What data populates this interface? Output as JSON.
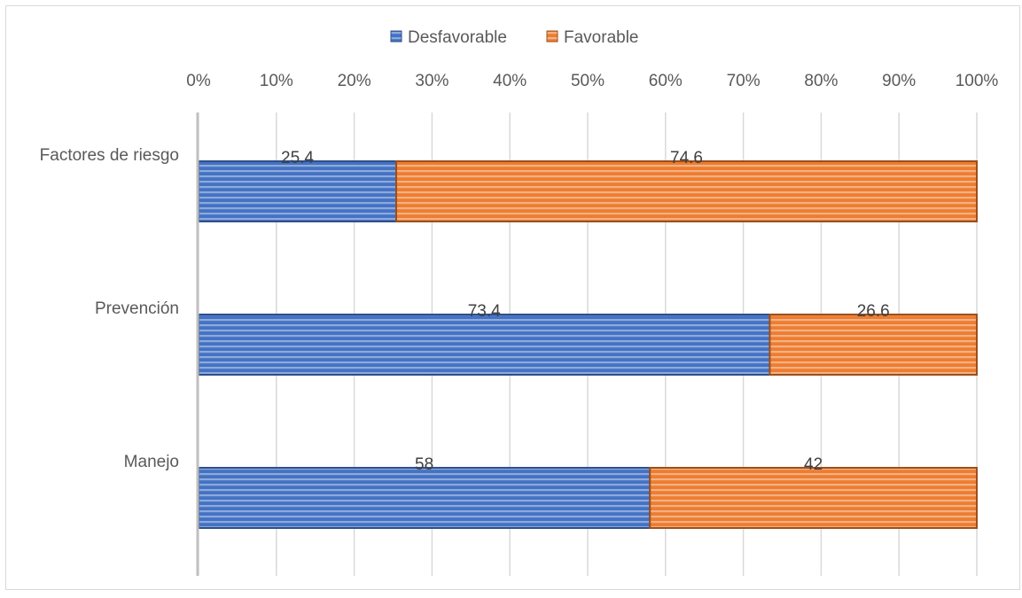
{
  "chart_data": {
    "type": "bar",
    "orientation": "horizontal",
    "stacked": "percent",
    "categories": [
      "Factores de riesgo",
      "Prevención",
      "Manejo"
    ],
    "series": [
      {
        "name": "Desfavorable",
        "values": [
          25.4,
          73.4,
          58
        ],
        "color": "#4472c4"
      },
      {
        "name": "Favorable",
        "values": [
          74.6,
          26.6,
          42
        ],
        "color": "#ed7d31"
      }
    ],
    "x_ticks": [
      "0%",
      "10%",
      "20%",
      "30%",
      "40%",
      "50%",
      "60%",
      "70%",
      "80%",
      "90%",
      "100%"
    ],
    "xlim": [
      0,
      100
    ],
    "title": "",
    "xlabel": "",
    "ylabel": "",
    "grid": "vertical",
    "legend_position": "top",
    "x_axis_position": "top"
  }
}
